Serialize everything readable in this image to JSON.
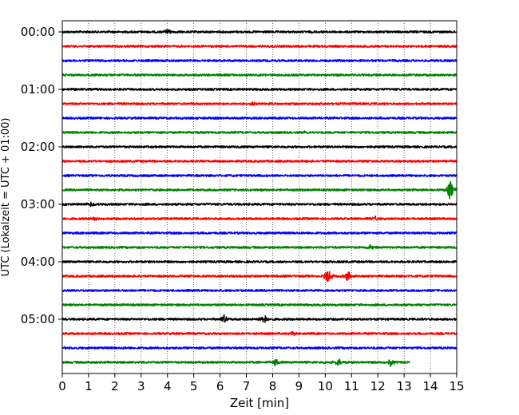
{
  "chart_data": {
    "type": "line",
    "xlabel": "Zeit  [min]",
    "ylabel": "UTC (Lokalzeit = UTC + 01:00)",
    "xlim": [
      0,
      15
    ],
    "x_ticks": [
      0,
      1,
      2,
      3,
      4,
      5,
      6,
      7,
      8,
      9,
      10,
      11,
      12,
      13,
      14,
      15
    ],
    "grid_x": "dotted",
    "y_tick_labels": [
      "00:00",
      "01:00",
      "02:00",
      "03:00",
      "04:00",
      "05:00"
    ],
    "trace_interval_min": 15,
    "color_cycle": [
      "#000000",
      "#ff0000",
      "#0000ff",
      "#008000"
    ],
    "traces": [
      {
        "start": "00:00",
        "color": "#000000",
        "x_end": 15,
        "events": [
          {
            "t": 4.0,
            "amp": 0.35
          }
        ]
      },
      {
        "start": "00:15",
        "color": "#ff0000",
        "x_end": 15,
        "events": []
      },
      {
        "start": "00:30",
        "color": "#0000ff",
        "x_end": 15,
        "events": []
      },
      {
        "start": "00:45",
        "color": "#008000",
        "x_end": 15,
        "events": []
      },
      {
        "start": "01:00",
        "color": "#000000",
        "x_end": 15,
        "events": []
      },
      {
        "start": "01:15",
        "color": "#ff0000",
        "x_end": 15,
        "events": [
          {
            "t": 7.2,
            "amp": 0.25
          }
        ]
      },
      {
        "start": "01:30",
        "color": "#0000ff",
        "x_end": 15,
        "events": [
          {
            "t": 5.1,
            "amp": 0.2
          }
        ]
      },
      {
        "start": "01:45",
        "color": "#008000",
        "x_end": 15,
        "events": [
          {
            "t": 9.2,
            "amp": 0.25
          }
        ]
      },
      {
        "start": "02:00",
        "color": "#000000",
        "x_end": 15,
        "events": []
      },
      {
        "start": "02:15",
        "color": "#ff0000",
        "x_end": 15,
        "events": []
      },
      {
        "start": "02:30",
        "color": "#0000ff",
        "x_end": 15,
        "events": []
      },
      {
        "start": "02:45",
        "color": "#008000",
        "x_end": 15,
        "events": [
          {
            "t": 2.2,
            "amp": 0.2
          },
          {
            "t": 14.75,
            "amp": 1.3
          }
        ]
      },
      {
        "start": "03:00",
        "color": "#000000",
        "x_end": 15,
        "events": [
          {
            "t": 1.1,
            "amp": 0.25
          }
        ]
      },
      {
        "start": "03:15",
        "color": "#ff0000",
        "x_end": 15,
        "events": [
          {
            "t": 1.25,
            "amp": 0.35
          },
          {
            "t": 11.9,
            "amp": 0.3
          }
        ]
      },
      {
        "start": "03:30",
        "color": "#0000ff",
        "x_end": 15,
        "events": []
      },
      {
        "start": "03:45",
        "color": "#008000",
        "x_end": 15,
        "events": [
          {
            "t": 11.7,
            "amp": 0.3
          }
        ]
      },
      {
        "start": "04:00",
        "color": "#000000",
        "x_end": 15,
        "events": []
      },
      {
        "start": "04:15",
        "color": "#ff0000",
        "x_end": 15,
        "events": [
          {
            "t": 10.1,
            "amp": 1.0
          },
          {
            "t": 10.85,
            "amp": 0.8
          }
        ]
      },
      {
        "start": "04:30",
        "color": "#0000ff",
        "x_end": 15,
        "events": []
      },
      {
        "start": "04:45",
        "color": "#008000",
        "x_end": 15,
        "events": []
      },
      {
        "start": "05:00",
        "color": "#000000",
        "x_end": 15,
        "events": [
          {
            "t": 6.15,
            "amp": 0.55
          },
          {
            "t": 7.7,
            "amp": 0.8
          }
        ]
      },
      {
        "start": "05:15",
        "color": "#ff0000",
        "x_end": 15,
        "events": [
          {
            "t": 8.75,
            "amp": 0.3
          }
        ]
      },
      {
        "start": "05:30",
        "color": "#0000ff",
        "x_end": 15,
        "events": []
      },
      {
        "start": "05:45",
        "color": "#008000",
        "x_end": 13.2,
        "events": [
          {
            "t": 8.1,
            "amp": 0.45
          },
          {
            "t": 10.5,
            "amp": 0.5
          },
          {
            "t": 12.5,
            "amp": 0.6
          }
        ]
      }
    ]
  }
}
